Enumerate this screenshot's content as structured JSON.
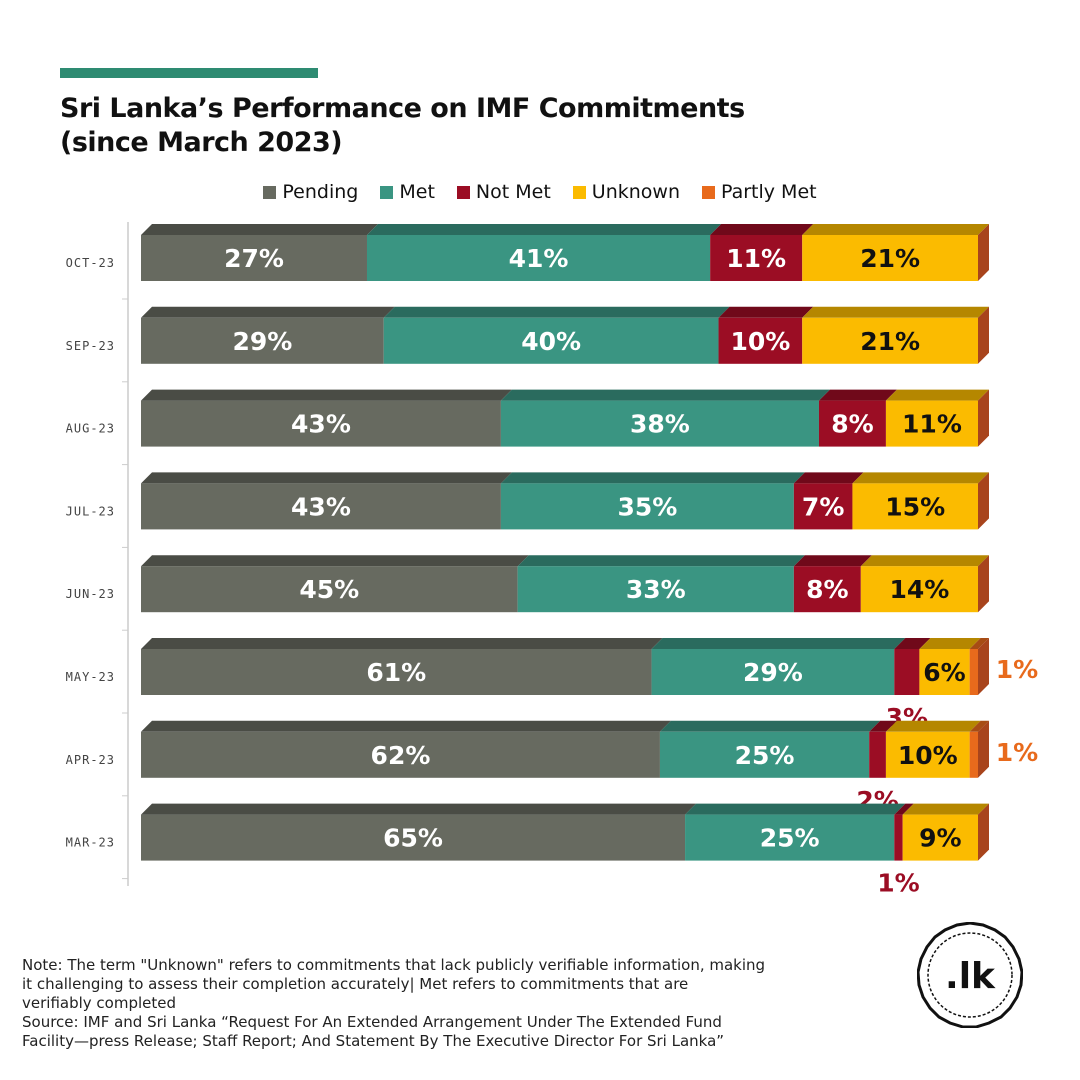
{
  "header": {
    "title_line1": "Sri Lanka’s Performance on IMF Commitments",
    "title_line2": "(since March 2023)",
    "accent_color": "#2e8b72"
  },
  "legend": [
    {
      "label": "Pending",
      "color": "#676a60"
    },
    {
      "label": "Met",
      "color": "#3a9582"
    },
    {
      "label": "Not Met",
      "color": "#9b0d24"
    },
    {
      "label": "Unknown",
      "color": "#fbbb00"
    },
    {
      "label": "Partly Met",
      "color": "#e86a1c"
    }
  ],
  "chart_data": {
    "type": "bar",
    "orientation": "horizontal",
    "stacked": true,
    "categories": [
      "OCT-23",
      "SEP-23",
      "AUG-23",
      "JUL-23",
      "JUN-23",
      "MAY-23",
      "APR-23",
      "MAR-23"
    ],
    "series": [
      {
        "name": "Pending",
        "color": "#676a60",
        "values": [
          27,
          29,
          43,
          43,
          45,
          61,
          62,
          65
        ]
      },
      {
        "name": "Met",
        "color": "#3a9582",
        "values": [
          41,
          40,
          38,
          35,
          33,
          29,
          25,
          25
        ]
      },
      {
        "name": "Not Met",
        "color": "#9b0d24",
        "values": [
          11,
          10,
          8,
          7,
          8,
          3,
          2,
          1
        ]
      },
      {
        "name": "Unknown",
        "color": "#fbbb00",
        "values": [
          21,
          21,
          11,
          15,
          14,
          6,
          10,
          9
        ]
      },
      {
        "name": "Partly Met",
        "color": "#e86a1c",
        "values": [
          0,
          0,
          0,
          0,
          0,
          1,
          1,
          0
        ]
      }
    ],
    "data_labels": [
      [
        "27%",
        "41%",
        "11%",
        "21%",
        ""
      ],
      [
        "29%",
        "40%",
        "10%",
        "21%",
        ""
      ],
      [
        "43%",
        "38%",
        "8%",
        "11%",
        ""
      ],
      [
        "43%",
        "35%",
        "7%",
        "15%",
        ""
      ],
      [
        "45%",
        "33%",
        "8%",
        "14%",
        ""
      ],
      [
        "61%",
        "29%",
        "3%",
        "6%",
        "1%"
      ],
      [
        "62%",
        "25%",
        "2%",
        "10%",
        "1%"
      ],
      [
        "65%",
        "25%",
        "1%",
        "9%",
        ""
      ]
    ],
    "xlim": [
      0,
      100
    ],
    "legend_position": "top",
    "grid": false
  },
  "footer": {
    "note_line1": "Note: The term \"Unknown\" refers to commitments that lack publicly verifiable information, making",
    "note_line2": "it challenging to assess their completion accurately| Met refers to commitments that are",
    "note_line3": "verifiably completed",
    "source_line1": "Source: IMF and Sri Lanka “Request For An Extended Arrangement Under The Extended Fund",
    "source_line2": "Facility—press Release; Staff Report; And Statement By The Executive Director For Sri Lanka”"
  },
  "logo": {
    "text": ".lk"
  }
}
